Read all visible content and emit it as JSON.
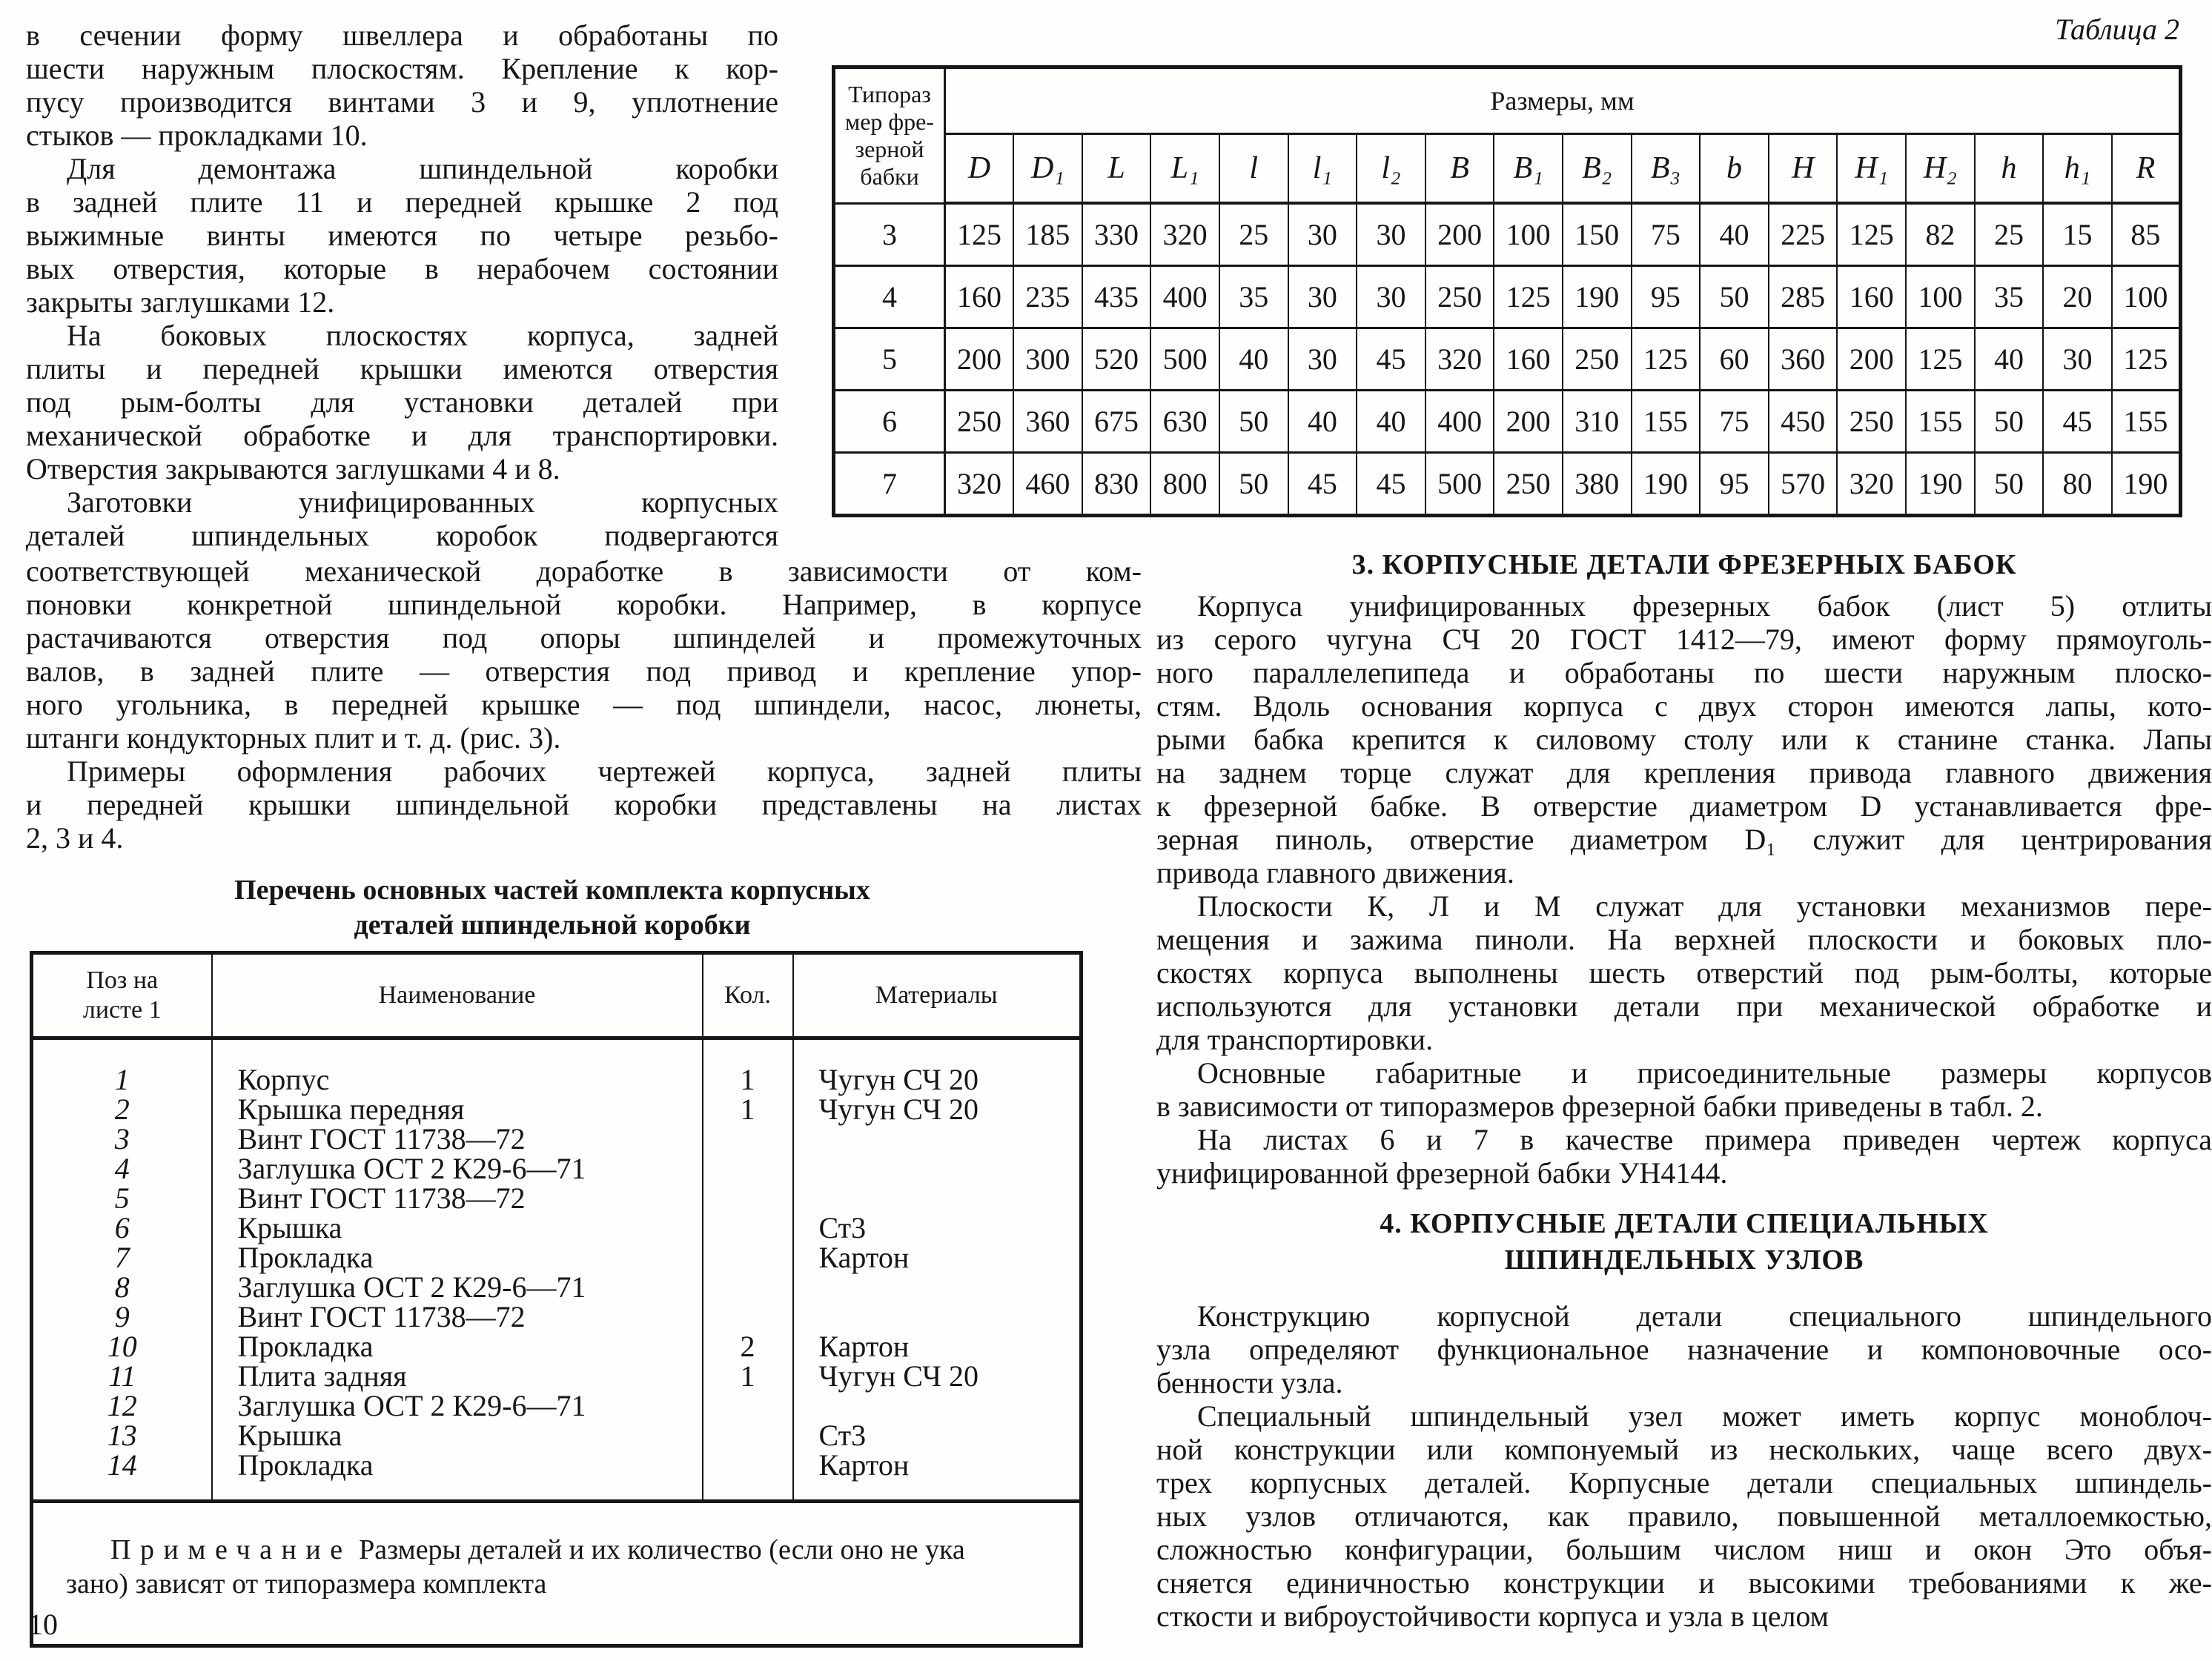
{
  "page": {
    "number": "10",
    "table2_label": "Таблица 2"
  },
  "left_narrow_lines": [
    "в сечении форму швеллера и обработаны по",
    "шести наружным плоскостям. Крепление к кор-",
    "пусу производится винтами 3 и 9, уплотнение",
    "стыков — прокладками 10.",
    "Для демонтажа шпиндельной коробки",
    "в задней плите 11 и передней крышке 2 под",
    "выжимные винты имеются по четыре резьбо-",
    "вых отверстия, которые в нерабочем состоянии",
    "закрыты заглушками 12.",
    "На боковых плоскостях корпуса, задней",
    "плиты и передней крышки имеются отверстия",
    "под рым-болты для установки деталей при",
    "механической обработке и для транспортировки.",
    "Отверстия закрываются заглушками 4 и 8.",
    "Заготовки унифицированных корпусных",
    "деталей шпиндельных коробок подвергаются"
  ],
  "left_wide_lines": [
    "соответствующей механической доработке в зависимости от ком-",
    "поновки конкретной шпиндельной коробки. Например, в корпусе",
    "растачиваются отверстия под опоры шпинделей и промежуточных",
    "валов, в задней плите — отверстия под привод и крепление упор-",
    "ного угольника, в передней крышке — под шпиндели, насос, люнеты,",
    "штанги кондукторных плит и т. д. (рис. 3).",
    "Примеры оформления рабочих чертежей корпуса, задней плиты",
    "и передней крышки шпиндельной коробки представлены на листах",
    "2, 3 и 4."
  ],
  "parts_title": {
    "line1": "Перечень основных частей комплекта корпусных",
    "line2": "деталей шпиндельной коробки"
  },
  "parts_table": {
    "headers": {
      "pos_line1": "Поз на",
      "pos_line2": "листе 1",
      "name": "Наименование",
      "qty": "Кол.",
      "material": "Материалы"
    },
    "rows": [
      {
        "pos": "1",
        "name": "Корпус",
        "qty": "1",
        "material": "Чугун СЧ 20"
      },
      {
        "pos": "2",
        "name": "Крышка передняя",
        "qty": "1",
        "material": "Чугун СЧ 20"
      },
      {
        "pos": "3",
        "name": "Винт ГОСТ 11738—72",
        "qty": "",
        "material": ""
      },
      {
        "pos": "4",
        "name": "Заглушка ОСТ 2 К29-6—71",
        "qty": "",
        "material": ""
      },
      {
        "pos": "5",
        "name": "Винт ГОСТ 11738—72",
        "qty": "",
        "material": ""
      },
      {
        "pos": "6",
        "name": "Крышка",
        "qty": "",
        "material": "Ст3"
      },
      {
        "pos": "7",
        "name": "Прокладка",
        "qty": "",
        "material": "Картон"
      },
      {
        "pos": "8",
        "name": "Заглушка ОСТ 2 К29-6—71",
        "qty": "",
        "material": ""
      },
      {
        "pos": "9",
        "name": "Винт ГОСТ 11738—72",
        "qty": "",
        "material": ""
      },
      {
        "pos": "10",
        "name": "Прокладка",
        "qty": "2",
        "material": "Картон"
      },
      {
        "pos": "11",
        "name": "Плита задняя",
        "qty": "1",
        "material": "Чугун СЧ 20"
      },
      {
        "pos": "12",
        "name": "Заглушка ОСТ 2 К29-6—71",
        "qty": "",
        "material": ""
      },
      {
        "pos": "13",
        "name": "Крышка",
        "qty": "",
        "material": "Ст3"
      },
      {
        "pos": "14",
        "name": "Прокладка",
        "qty": "",
        "material": "Картон"
      }
    ],
    "note_label": "Примечание",
    "note_line1_rest": " Размеры деталей и их количество (если оно не ука",
    "note_line2": "зано) зависят от типоразмера комплекта"
  },
  "dim_table": {
    "corner_lines": [
      "Типораз",
      "мер фре-",
      "зерной",
      "бабки"
    ],
    "span_header": "Размеры, мм",
    "columns": [
      "D",
      "D₁",
      "L",
      "L₁",
      "l",
      "l₁",
      "l₂",
      "B",
      "B₁",
      "B₂",
      "B₃",
      "b",
      "H",
      "H₁",
      "H₂",
      "h",
      "h₁",
      "R"
    ],
    "rows": [
      {
        "size": "3",
        "values": [
          "125",
          "185",
          "330",
          "320",
          "25",
          "30",
          "30",
          "200",
          "100",
          "150",
          "75",
          "40",
          "225",
          "125",
          "82",
          "25",
          "15",
          "85"
        ]
      },
      {
        "size": "4",
        "values": [
          "160",
          "235",
          "435",
          "400",
          "35",
          "30",
          "30",
          "250",
          "125",
          "190",
          "95",
          "50",
          "285",
          "160",
          "100",
          "35",
          "20",
          "100"
        ]
      },
      {
        "size": "5",
        "values": [
          "200",
          "300",
          "520",
          "500",
          "40",
          "30",
          "45",
          "320",
          "160",
          "250",
          "125",
          "60",
          "360",
          "200",
          "125",
          "40",
          "30",
          "125"
        ]
      },
      {
        "size": "6",
        "values": [
          "250",
          "360",
          "675",
          "630",
          "50",
          "40",
          "40",
          "400",
          "200",
          "310",
          "155",
          "75",
          "450",
          "250",
          "155",
          "50",
          "45",
          "155"
        ]
      },
      {
        "size": "7",
        "values": [
          "320",
          "460",
          "830",
          "800",
          "50",
          "45",
          "45",
          "500",
          "250",
          "380",
          "190",
          "95",
          "570",
          "320",
          "190",
          "50",
          "80",
          "190"
        ]
      }
    ]
  },
  "right_column": {
    "heading3": "3. КОРПУСНЫЕ ДЕТАЛИ ФРЕЗЕРНЫХ БАБОК",
    "heading4_line1": "4. КОРПУСНЫЕ ДЕТАЛИ СПЕЦИАЛЬНЫХ",
    "heading4_line2": "ШПИНДЕЛЬНЫХ УЗЛОВ",
    "lines_a": [
      "Корпуса унифицированных фрезерных бабок (лист 5) отлиты",
      "из серого чугуна СЧ 20 ГОСТ 1412—79, имеют форму прямоуголь-",
      "ного параллелепипеда и обработаны по шести наружным плоско-",
      "стям. Вдоль основания корпуса с двух сторон имеются лапы, кото-",
      "рыми бабка крепится к силовому столу или к станине станка. Лапы",
      "на заднем торце служат для крепления привода главного движения",
      "к фрезерной бабке. В отверстие диаметром D устанавливается фре-",
      "зерная пиноль, отверстие диаметром D₁ служит для центрирования",
      "привода главного движения.",
      "Плоскости К, Л и М служат для установки механизмов пере-",
      "мещения и зажима пиноли. На верхней плоскости и боковых пло-",
      "скостях корпуса выполнены шесть отверстий под рым-болты, которые",
      "используются для установки детали при механической обработке и",
      "для транспортировки.",
      "Основные габаритные и присоединительные размеры корпусов",
      "в зависимости от типоразмеров фрезерной бабки приведены в табл. 2.",
      "На листах 6 и 7 в качестве примера приведен чертеж корпуса",
      "унифицированной фрезерной бабки УН4144."
    ],
    "lines_b": [
      "Конструкцию корпусной детали специального шпиндельного",
      "узла определяют функциональное назначение и компоновочные осо-",
      "бенности узла.",
      "Специальный шпиндельный узел может иметь корпус моноблоч-",
      "ной конструкции или компонуемый из нескольких, чаще всего двух-",
      "трех корпусных деталей. Корпусные детали специальных шпиндель-",
      "ных узлов отличаются, как правило, повышенной металлоемкостью,",
      "сложностью конфигурации, большим числом ниш и окон Это объя-",
      "сняется единичностью конструкции и высокими требованиями к же-",
      "сткости и виброустойчивости корпуса и узла в целом"
    ]
  }
}
